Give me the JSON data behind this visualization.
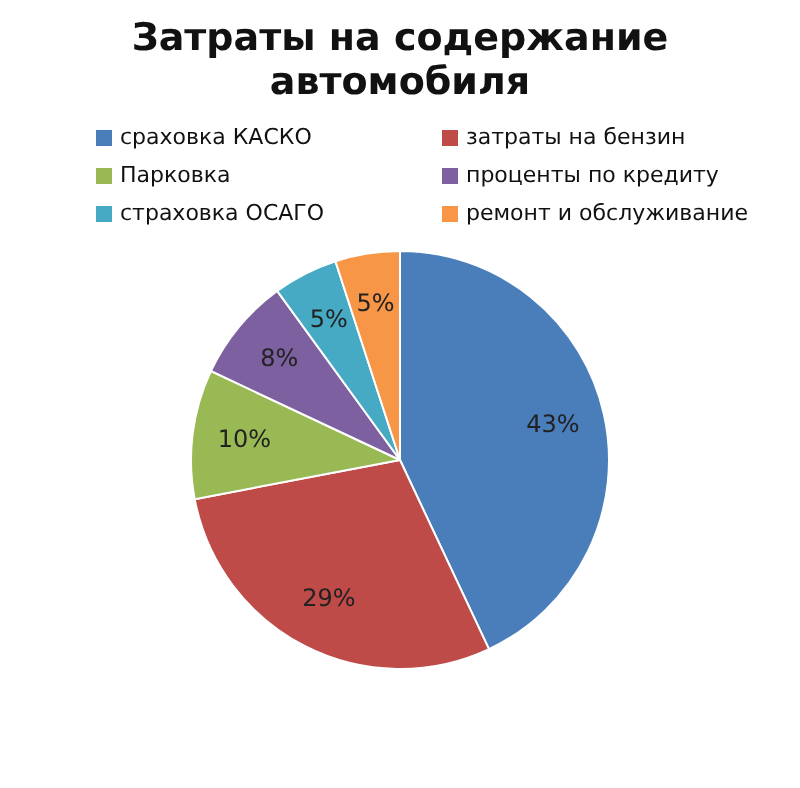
{
  "chart_data": {
    "type": "pie",
    "title": "Затраты на содержание автомобиля",
    "categories": [
      "сраховка КАСКО",
      "затраты на бензин",
      "Парковка",
      "проценты по кредиту",
      "страховка ОСАГО",
      "ремонт и обслуживание"
    ],
    "values": [
      43,
      29,
      10,
      8,
      5,
      5
    ],
    "colors": [
      "#4a7ebb",
      "#be4b48",
      "#98b954",
      "#7d60a0",
      "#46aac5",
      "#f79646"
    ],
    "value_labels": [
      "43%",
      "29%",
      "10%",
      "8%",
      "5%",
      "5%"
    ],
    "legend": "top"
  }
}
